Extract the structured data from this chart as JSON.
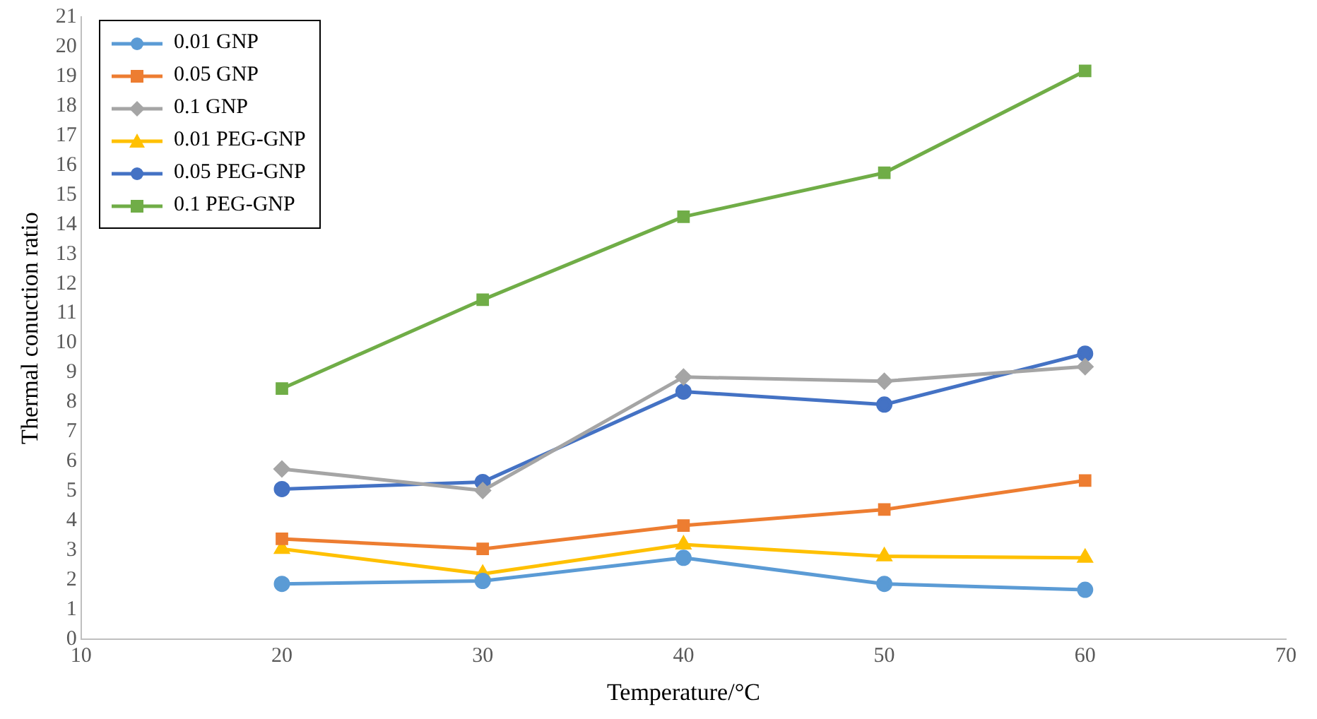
{
  "chart_data": {
    "type": "line",
    "xlabel": "Temperature/°C",
    "ylabel": "Thermal conuction ratio",
    "x": [
      20,
      30,
      40,
      50,
      60
    ],
    "xlim": [
      10,
      70
    ],
    "xticks": [
      10,
      20,
      30,
      40,
      50,
      60,
      70
    ],
    "ylim": [
      0,
      21
    ],
    "yticks": [
      0,
      1,
      2,
      3,
      4,
      5,
      6,
      7,
      8,
      9,
      10,
      11,
      12,
      13,
      14,
      15,
      16,
      17,
      18,
      19,
      20,
      21
    ],
    "grid": false,
    "legend": "top left",
    "line_style": "solid",
    "series": [
      {
        "name": "0.01 GNP",
        "color": "#5b9bd5",
        "marker": "circle",
        "values": [
          1.87,
          1.97,
          2.75,
          1.87,
          1.67
        ]
      },
      {
        "name": "0.05 GNP",
        "color": "#ed7d31",
        "marker": "square",
        "values": [
          3.39,
          3.05,
          3.84,
          4.38,
          5.36
        ]
      },
      {
        "name": "0.1 GNP",
        "color": "#a5a5a5",
        "marker": "diamond",
        "values": [
          5.75,
          5.02,
          8.85,
          8.71,
          9.2
        ]
      },
      {
        "name": "0.01 PEG-GNP",
        "color": "#ffc000",
        "marker": "triangle",
        "values": [
          3.05,
          2.21,
          3.2,
          2.8,
          2.75
        ]
      },
      {
        "name": "0.05 PEG-GNP",
        "color": "#4472c4",
        "marker": "circle",
        "values": [
          5.07,
          5.31,
          8.36,
          7.92,
          9.64
        ]
      },
      {
        "name": "0.1 PEG-GNP",
        "color": "#70ad47",
        "marker": "square",
        "values": [
          8.46,
          11.46,
          14.26,
          15.74,
          19.18
        ]
      }
    ]
  }
}
